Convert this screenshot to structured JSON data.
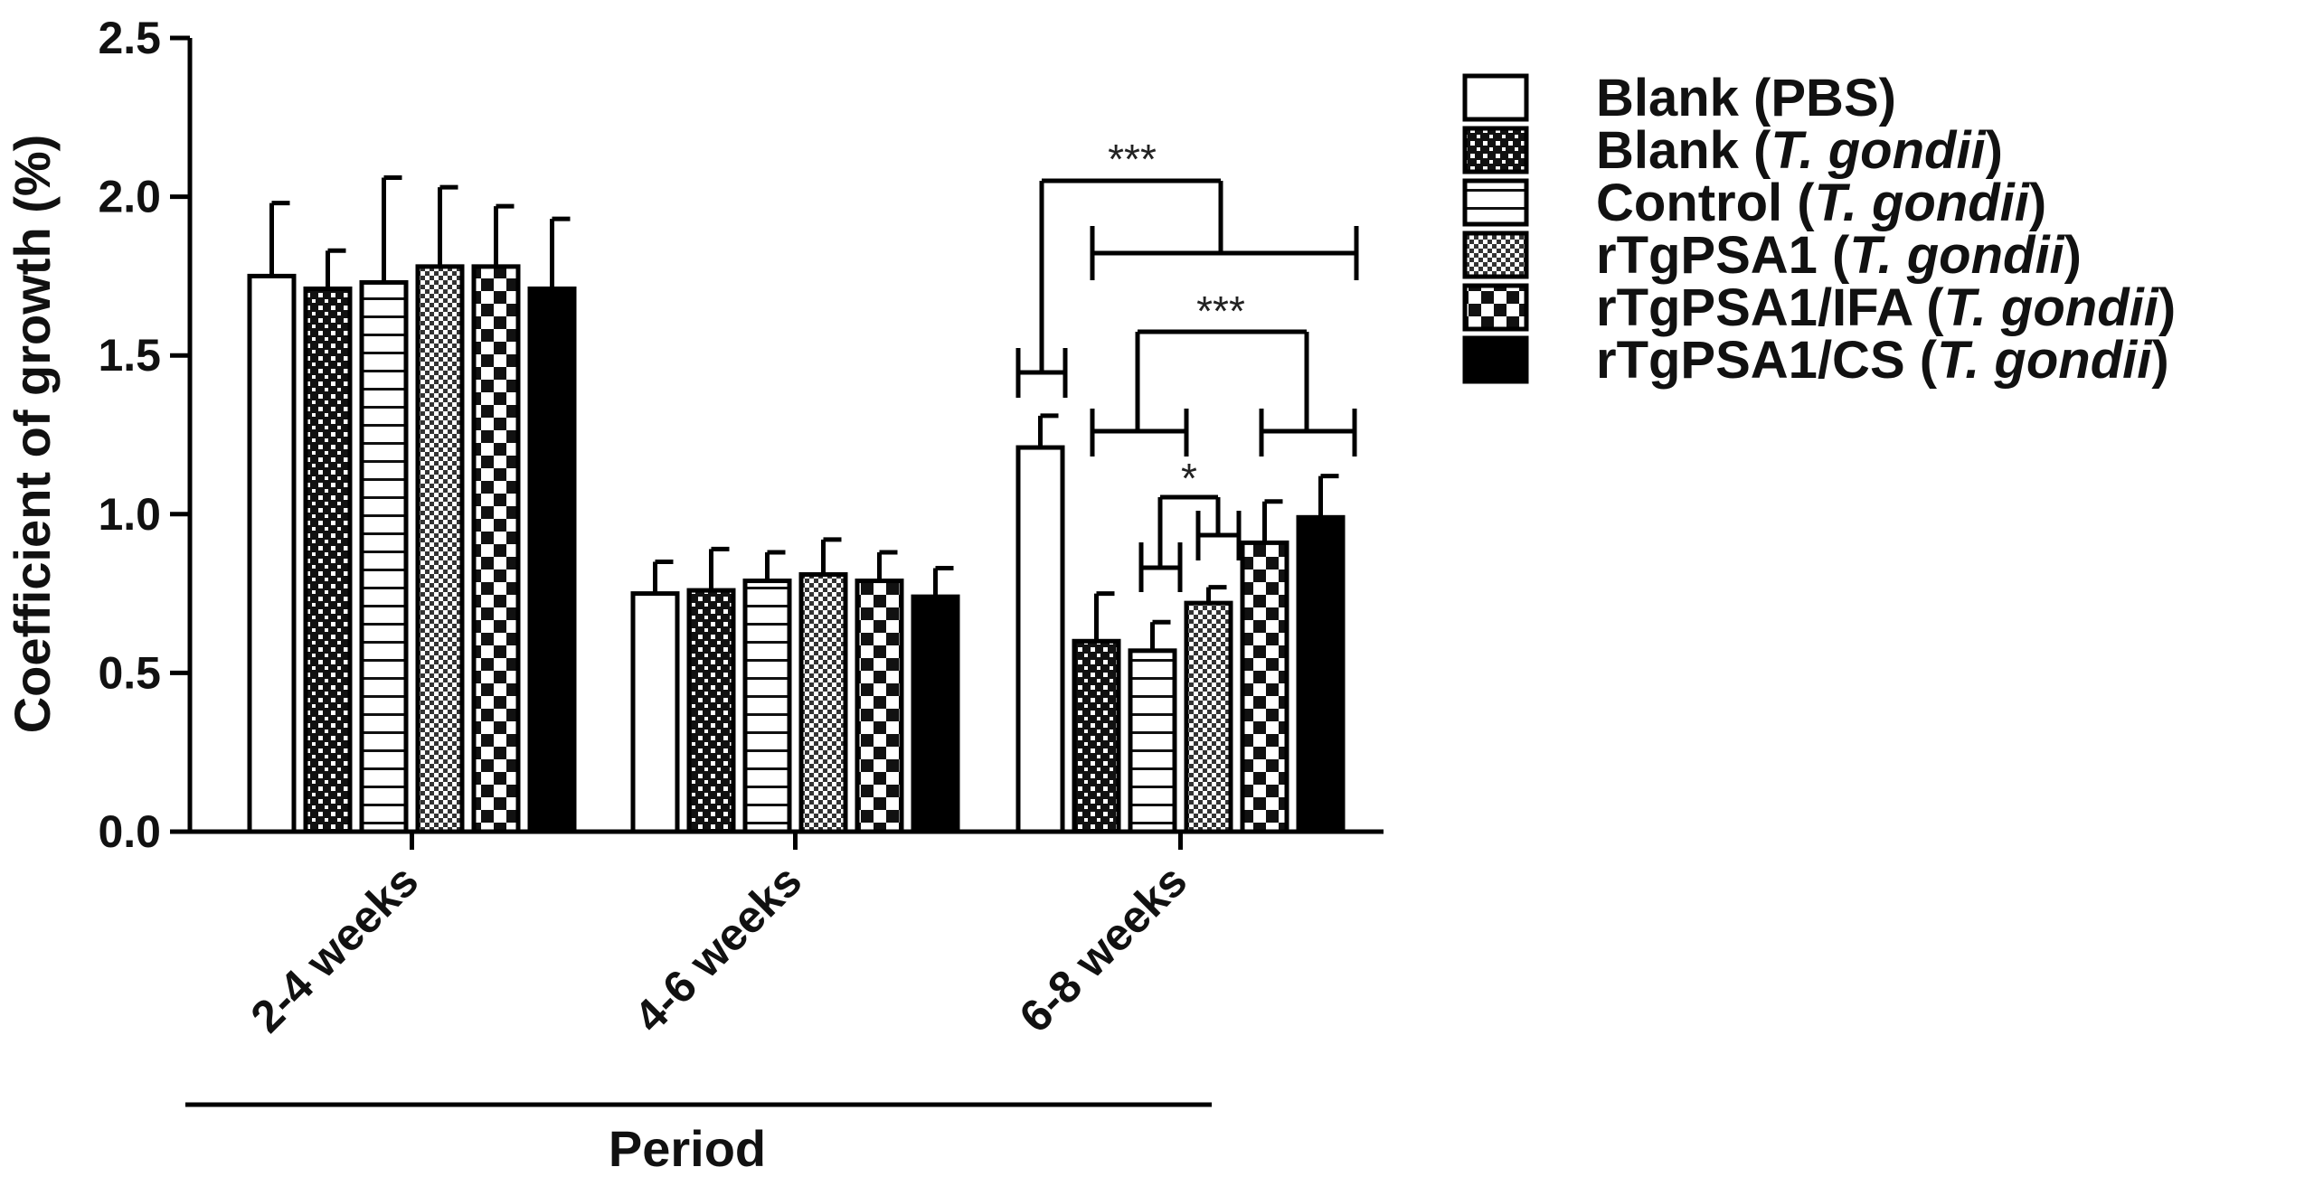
{
  "chart_data": {
    "type": "bar",
    "xlabel": "Period",
    "ylabel": "Coefficient of growth (%)",
    "ylim": [
      0,
      2.5
    ],
    "yticks": [
      "0.0",
      "0.5",
      "1.0",
      "1.5",
      "2.0",
      "2.5"
    ],
    "categories": [
      "2-4 weeks",
      "4-6 weeks",
      "6-8 weeks"
    ],
    "legend_position": "right",
    "grid": false,
    "series": [
      {
        "name": "Blank (PBS)",
        "name_main": "Blank (",
        "name_italic": "",
        "name_end": "PBS)",
        "pattern": "white",
        "values": [
          1.75,
          0.75,
          1.21
        ],
        "errors": [
          0.23,
          0.1,
          0.1
        ]
      },
      {
        "name": "Blank (T. gondii)",
        "name_main": "Blank (",
        "name_italic": "T. gondii",
        "name_end": ")",
        "pattern": "grid",
        "values": [
          1.71,
          0.76,
          0.6
        ],
        "errors": [
          0.12,
          0.13,
          0.15
        ]
      },
      {
        "name": "Control (T. gondii)",
        "name_main": "Control (",
        "name_italic": "T. gondii",
        "name_end": ")",
        "pattern": "hlines",
        "values": [
          1.73,
          0.79,
          0.57
        ],
        "errors": [
          0.33,
          0.09,
          0.09
        ]
      },
      {
        "name": "rTgPSA1 (T. gondii)",
        "name_main": "rTgPSA1 (",
        "name_italic": "T. gondii",
        "name_end": ")",
        "pattern": "dots",
        "values": [
          1.78,
          0.81,
          0.72
        ],
        "errors": [
          0.25,
          0.11,
          0.05
        ]
      },
      {
        "name": "rTgPSA1/IFA (T. gondii)",
        "name_main": "rTgPSA1/IFA (",
        "name_italic": "T. gondii",
        "name_end": ")",
        "pattern": "checker",
        "values": [
          1.78,
          0.79,
          0.91
        ],
        "errors": [
          0.19,
          0.09,
          0.13
        ]
      },
      {
        "name": "rTgPSA1/CS (T. gondii)",
        "name_main": "rTgPSA1/CS (",
        "name_italic": "T. gondii",
        "name_end": ")",
        "pattern": "black",
        "values": [
          1.71,
          0.74,
          0.99
        ],
        "errors": [
          0.22,
          0.09,
          0.13
        ]
      }
    ],
    "annotations": [
      {
        "label": "***",
        "between": "Blank (PBS) vs rTgPSA1 groups",
        "category": "6-8 weeks"
      },
      {
        "label": "***",
        "between": "Blank/Control (T. gondii) vs rTgPSA1/IFA, rTgPSA1/CS",
        "category": "6-8 weeks"
      },
      {
        "label": "*",
        "between": "Blank/Control (T. gondii) vs rTgPSA1",
        "category": "6-8 weeks"
      }
    ]
  }
}
